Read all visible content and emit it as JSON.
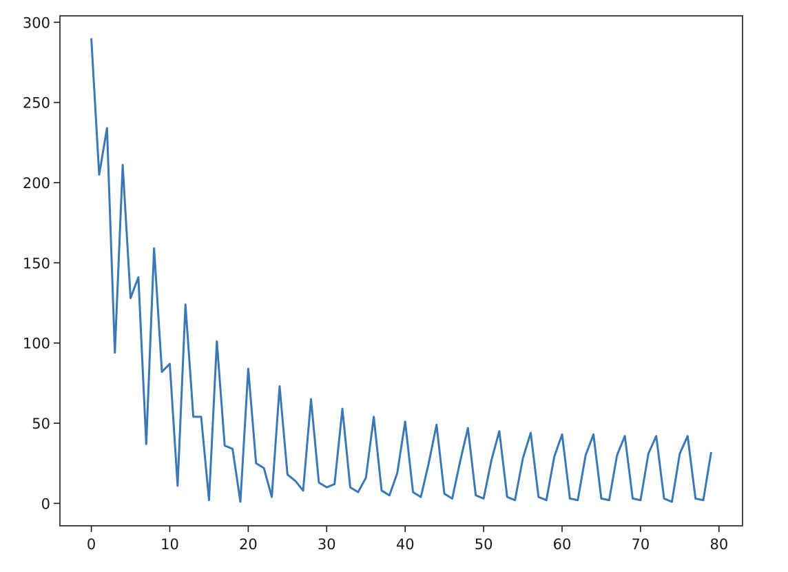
{
  "chart_data": {
    "type": "line",
    "title": "",
    "xlabel": "",
    "ylabel": "",
    "xlim": [
      -4,
      83
    ],
    "ylim": [
      -14,
      304
    ],
    "xticks": [
      0,
      10,
      20,
      30,
      40,
      50,
      60,
      70,
      80
    ],
    "yticks": [
      0,
      50,
      100,
      150,
      200,
      250,
      300
    ],
    "grid": false,
    "line_color": "#3a78b5",
    "series": [
      {
        "x": [
          0,
          1,
          2,
          3,
          4,
          5,
          6,
          7,
          8,
          9,
          10,
          11,
          12,
          13,
          14,
          15,
          16,
          17,
          18,
          19,
          20,
          21,
          22,
          23,
          24,
          25,
          26,
          27,
          28,
          29,
          30,
          31,
          32,
          33,
          34,
          35,
          36,
          37,
          38,
          39,
          40,
          41,
          42,
          43,
          44,
          45,
          46,
          47,
          48,
          49,
          50,
          51,
          52,
          53,
          54,
          55,
          56,
          57,
          58,
          59,
          60,
          61,
          62,
          63,
          64,
          65,
          66,
          67,
          68,
          69,
          70,
          71,
          72,
          73,
          74,
          75,
          76,
          77,
          78,
          79
        ],
        "values": [
          290,
          205,
          234,
          94,
          211,
          128,
          141,
          37,
          159,
          82,
          87,
          11,
          124,
          54,
          54,
          2,
          101,
          36,
          34,
          1,
          84,
          25,
          22,
          4,
          73,
          18,
          14,
          8,
          65,
          13,
          10,
          12,
          59,
          10,
          7,
          16,
          54,
          8,
          5,
          19,
          51,
          7,
          4,
          25,
          49,
          6,
          3,
          26,
          47,
          5,
          3,
          27,
          45,
          4,
          2,
          28,
          44,
          4,
          2,
          29,
          43,
          3,
          2,
          30,
          43,
          3,
          2,
          30,
          42,
          3,
          2,
          31,
          42,
          3,
          1,
          31,
          42,
          3,
          2,
          32
        ]
      }
    ]
  }
}
